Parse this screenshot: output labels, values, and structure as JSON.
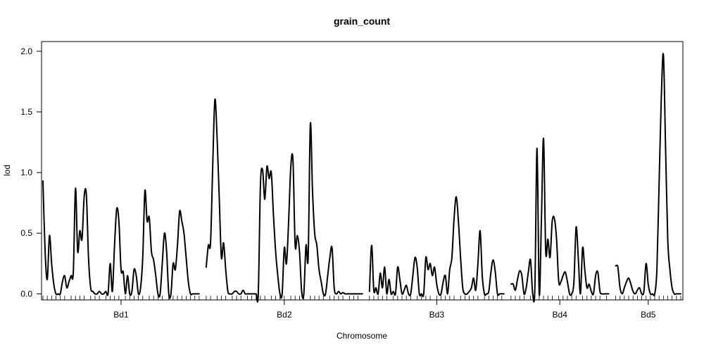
{
  "chart_data": {
    "type": "line",
    "title": "grain_count",
    "xlabel": "Chromosome",
    "ylabel": "lod",
    "ylim": [
      -0.05,
      2.08
    ],
    "yticks": [
      0.0,
      0.5,
      1.0,
      1.5,
      2.0
    ],
    "ytick_labels": [
      "0.0",
      "0.5",
      "1.0",
      "1.5",
      "2.0"
    ],
    "grid": false,
    "legend": "none",
    "line_color": "#000000",
    "chromosomes": [
      {
        "name": "Bd1",
        "length": 72,
        "x": [
          0,
          1,
          2,
          3,
          4,
          5,
          6,
          7,
          8,
          9,
          10,
          11,
          12,
          13,
          14,
          15,
          16,
          17,
          18,
          19,
          20,
          21,
          22,
          23,
          24,
          25,
          26,
          27,
          28,
          29,
          30,
          31,
          32,
          33,
          34,
          35,
          36,
          37,
          38,
          39,
          40,
          41,
          42,
          43,
          44,
          45,
          46,
          47,
          48,
          49,
          50,
          51,
          52,
          53,
          54,
          55,
          56,
          57,
          58,
          59,
          60,
          61,
          62,
          63,
          64,
          65,
          66,
          67,
          68,
          69,
          70,
          71,
          72
        ],
        "lod": [
          0.93,
          0.35,
          0.12,
          0.48,
          0.25,
          0.08,
          0.0,
          0.0,
          0.0,
          0.1,
          0.15,
          0.05,
          0.1,
          0.15,
          0.18,
          0.87,
          0.35,
          0.52,
          0.45,
          0.8,
          0.82,
          0.3,
          0.05,
          0.02,
          0.0,
          0.0,
          0.02,
          0.0,
          0.0,
          0.02,
          0.0,
          0.25,
          0.02,
          0.4,
          0.7,
          0.6,
          0.2,
          0.18,
          0.0,
          0.15,
          0.0,
          0.02,
          0.2,
          0.15,
          0.0,
          0.05,
          0.3,
          0.85,
          0.6,
          0.63,
          0.35,
          0.28,
          0.15,
          0.0,
          0.0,
          0.25,
          0.5,
          0.35,
          0.0,
          0.0,
          0.25,
          0.2,
          0.4,
          0.68,
          0.6,
          0.5,
          0.3,
          0.1,
          0.0,
          0.0,
          0.0,
          0.0,
          0.0
        ],
        "markers": [
          0,
          2,
          4,
          6,
          8,
          10,
          13,
          15,
          17,
          19,
          22,
          24,
          26,
          29,
          31,
          33,
          35,
          38,
          40,
          42,
          44,
          46,
          49,
          51,
          53,
          55,
          58,
          60,
          62,
          64,
          66,
          68,
          70,
          72
        ]
      },
      {
        "name": "Bd2",
        "length": 72,
        "x": [
          0,
          1,
          2,
          3,
          4,
          5,
          6,
          7,
          8,
          9,
          10,
          11,
          12,
          13,
          14,
          15,
          16,
          17,
          18,
          19,
          20,
          21,
          22,
          23,
          24,
          25,
          26,
          27,
          28,
          29,
          30,
          31,
          32,
          33,
          34,
          35,
          36,
          37,
          38,
          39,
          40,
          41,
          42,
          43,
          44,
          45,
          46,
          47,
          48,
          49,
          50,
          51,
          52,
          53,
          54,
          55,
          56,
          57,
          58,
          59,
          60,
          61,
          62,
          63,
          64,
          65,
          66,
          67,
          68,
          69,
          70,
          71,
          72
        ],
        "lod": [
          0.22,
          0.4,
          0.42,
          1.05,
          1.6,
          1.3,
          0.8,
          0.3,
          0.42,
          0.2,
          0.02,
          0.0,
          0.0,
          0.02,
          0.02,
          0.0,
          0.0,
          0.03,
          0.0,
          0.0,
          0.0,
          0.0,
          0.0,
          0.0,
          0.0,
          0.9,
          1.02,
          0.78,
          1.05,
          0.95,
          1.0,
          0.65,
          0.35,
          0.15,
          0.0,
          0.0,
          0.38,
          0.25,
          0.6,
          1.05,
          1.1,
          0.4,
          0.48,
          0.35,
          0.02,
          0.0,
          0.4,
          0.3,
          1.4,
          0.85,
          0.5,
          0.4,
          0.2,
          0.1,
          0.0,
          0.0,
          0.15,
          0.3,
          0.38,
          0.05,
          0.0,
          0.02,
          0.0,
          0.01,
          0.0,
          0.0,
          0.0,
          0.0,
          0.0,
          0.0,
          0.0,
          0.0,
          0.0
        ],
        "markers": [
          0,
          2,
          5,
          7,
          9,
          12,
          14,
          16,
          19,
          21,
          23,
          25,
          27,
          30,
          32,
          34,
          36,
          39,
          41,
          43,
          45,
          48,
          50,
          52,
          54,
          57,
          59,
          61,
          63,
          66,
          68,
          70
        ]
      },
      {
        "name": "Bd3",
        "length": 62,
        "x": [
          0,
          1,
          2,
          3,
          4,
          5,
          6,
          7,
          8,
          9,
          10,
          11,
          12,
          13,
          14,
          15,
          16,
          17,
          18,
          19,
          20,
          21,
          22,
          23,
          24,
          25,
          26,
          27,
          28,
          29,
          30,
          31,
          32,
          33,
          34,
          35,
          36,
          37,
          38,
          39,
          40,
          41,
          42,
          43,
          44,
          45,
          46,
          47,
          48,
          49,
          50,
          51,
          52,
          53,
          54,
          55,
          56,
          57,
          58,
          59,
          60,
          61,
          62
        ],
        "lod": [
          0.02,
          0.4,
          0.03,
          0.05,
          0.0,
          0.17,
          0.05,
          0.22,
          0.0,
          0.12,
          0.0,
          0.02,
          0.0,
          0.22,
          0.12,
          0.0,
          0.03,
          0.07,
          0.0,
          0.0,
          0.15,
          0.3,
          0.22,
          0.0,
          0.0,
          0.0,
          0.3,
          0.2,
          0.25,
          0.15,
          0.22,
          0.08,
          0.0,
          0.0,
          0.1,
          0.15,
          0.0,
          0.2,
          0.3,
          0.62,
          0.8,
          0.6,
          0.3,
          0.05,
          0.0,
          0.0,
          0.02,
          0.05,
          0.13,
          0.03,
          0.25,
          0.52,
          0.15,
          0.0,
          0.0,
          0.02,
          0.18,
          0.28,
          0.18,
          0.0,
          0.0,
          0.0,
          0.0
        ],
        "markers": [
          0,
          2,
          4,
          6,
          8,
          11,
          13,
          15,
          17,
          19,
          22,
          24,
          26,
          28,
          31,
          33,
          35,
          37,
          39,
          42,
          44,
          46,
          48,
          50,
          53,
          55,
          57,
          59,
          61
        ]
      },
      {
        "name": "Bd4",
        "length": 45,
        "x": [
          0,
          1,
          2,
          3,
          4,
          5,
          6,
          7,
          8,
          9,
          10,
          11,
          12,
          13,
          14,
          15,
          16,
          17,
          18,
          19,
          20,
          21,
          22,
          23,
          24,
          25,
          26,
          27,
          28,
          29,
          30,
          31,
          32,
          33,
          34,
          35,
          36,
          37,
          38,
          39,
          40,
          41,
          42,
          43,
          44,
          45
        ],
        "lod": [
          0.08,
          0.08,
          0.03,
          0.12,
          0.19,
          0.15,
          0.0,
          0.05,
          0.18,
          0.28,
          0.0,
          0.05,
          1.2,
          0.0,
          0.6,
          1.28,
          0.35,
          0.45,
          0.3,
          0.6,
          0.62,
          0.45,
          0.1,
          0.1,
          0.15,
          0.18,
          0.1,
          0.0,
          0.0,
          0.1,
          0.55,
          0.3,
          0.0,
          0.38,
          0.2,
          0.05,
          0.08,
          0.02,
          0.0,
          0.15,
          0.18,
          0.02,
          0.0,
          0.0,
          0.0,
          0.0
        ],
        "markers": [
          0,
          2,
          4,
          6,
          9,
          11,
          13,
          15,
          17,
          19,
          22,
          24,
          26,
          28,
          30,
          33,
          35,
          37,
          39,
          41,
          44
        ]
      },
      {
        "name": "Bd5",
        "length": 30,
        "x": [
          0,
          1,
          2,
          3,
          4,
          5,
          6,
          7,
          8,
          9,
          10,
          11,
          12,
          13,
          14,
          15,
          16,
          17,
          18,
          19,
          20,
          21,
          22,
          23,
          24,
          25,
          26,
          27,
          28,
          29,
          30
        ],
        "lod": [
          0.23,
          0.22,
          0.05,
          0.0,
          0.05,
          0.1,
          0.13,
          0.08,
          0.02,
          0.0,
          0.03,
          0.05,
          0.0,
          0.02,
          0.25,
          0.08,
          0.0,
          0.0,
          0.0,
          0.2,
          0.9,
          1.6,
          1.97,
          1.2,
          0.45,
          0.2,
          0.05,
          0.0,
          0.0,
          0.0,
          0.0
        ],
        "markers": [
          0,
          2,
          4,
          6,
          8,
          10,
          12,
          14,
          16,
          18,
          20,
          22,
          24,
          26,
          28,
          30
        ]
      }
    ]
  }
}
